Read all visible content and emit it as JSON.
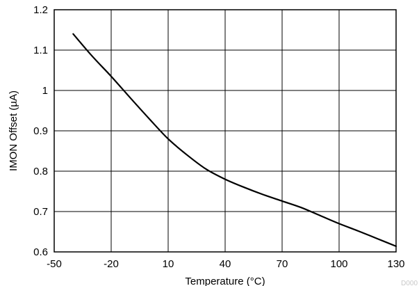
{
  "chart_data": {
    "type": "line",
    "title": "",
    "xlabel": "Temperature (°C)",
    "ylabel": "IMON Offset (µA)",
    "xlim": [
      -50,
      130
    ],
    "ylim": [
      0.6,
      1.2
    ],
    "x_ticks": [
      -50,
      -20,
      10,
      40,
      70,
      100,
      130
    ],
    "y_ticks": [
      0.6,
      0.7,
      0.8,
      0.9,
      1.0,
      1.1,
      1.2
    ],
    "x_tick_labels": [
      "-50",
      "-20",
      "10",
      "40",
      "70",
      "100",
      "130"
    ],
    "y_tick_labels": [
      "0.6",
      "0.7",
      "0.8",
      "0.9",
      "1",
      "1.1",
      "1.2"
    ],
    "grid": true,
    "series": [
      {
        "x": [
          -40,
          -30,
          -20,
          -10,
          0,
          10,
          20,
          30,
          40,
          50,
          60,
          70,
          80,
          90,
          100,
          110,
          120,
          130
        ],
        "y": [
          1.14,
          1.085,
          1.035,
          0.982,
          0.93,
          0.88,
          0.84,
          0.805,
          0.78,
          0.76,
          0.742,
          0.726,
          0.71,
          0.69,
          0.67,
          0.652,
          0.633,
          0.614
        ],
        "color": "#000000"
      }
    ],
    "watermark": "D000"
  }
}
